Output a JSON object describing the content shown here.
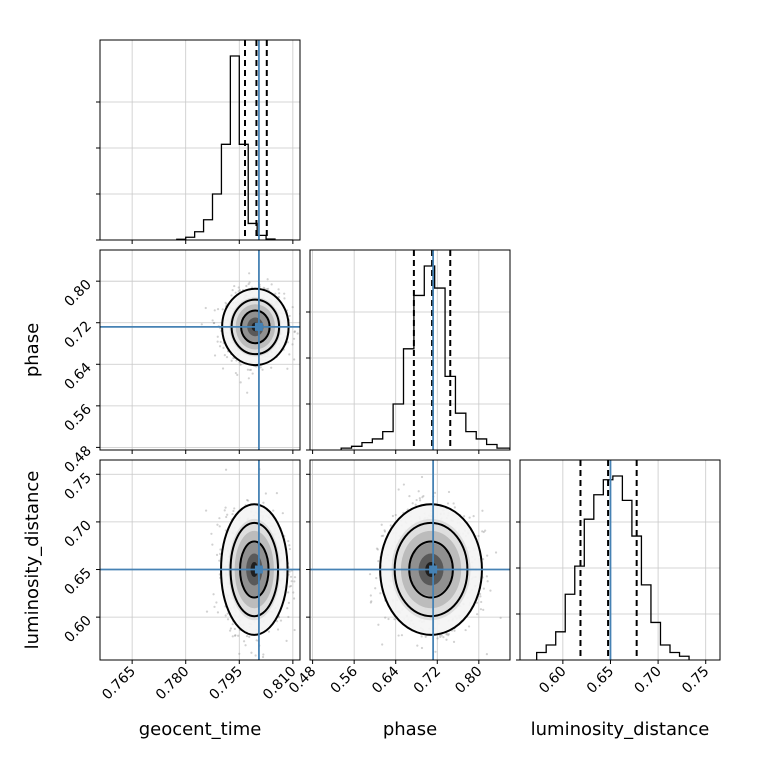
{
  "chart_data": {
    "type": "corner",
    "parameters": [
      {
        "name": "geocent_time",
        "label": "geocent_time",
        "range": [
          0.756,
          0.812
        ],
        "ticks": [
          0.765,
          0.78,
          0.795,
          0.81
        ],
        "tick_labels": [
          "0.765",
          "0.780",
          "0.795",
          "0.810"
        ],
        "truth": 0.8005,
        "quantiles": [
          0.7966,
          0.7998,
          0.8027
        ],
        "histogram": {
          "edges": [
            0.7775,
            0.78,
            0.7825,
            0.785,
            0.7875,
            0.79,
            0.7925,
            0.795,
            0.7975,
            0.8,
            0.8025,
            0.805,
            0.8075,
            0.81
          ],
          "counts": [
            0.004,
            0.015,
            0.045,
            0.11,
            0.25,
            0.52,
            1.0,
            0.52,
            0.09,
            0.025,
            0.005,
            0.0,
            0.0
          ]
        }
      },
      {
        "name": "phase",
        "label": "phase",
        "range": [
          0.475,
          0.86
        ],
        "ticks": [
          0.48,
          0.56,
          0.64,
          0.72,
          0.8
        ],
        "tick_labels": [
          "0.48",
          "0.56",
          "0.64",
          "0.72",
          "0.80"
        ],
        "truth": 0.712,
        "quantiles": [
          0.675,
          0.71,
          0.745
        ],
        "histogram": {
          "edges": [
            0.535,
            0.555,
            0.575,
            0.595,
            0.615,
            0.635,
            0.655,
            0.675,
            0.695,
            0.715,
            0.735,
            0.755,
            0.775,
            0.795,
            0.815,
            0.835,
            0.86
          ],
          "counts": [
            0.01,
            0.02,
            0.04,
            0.06,
            0.1,
            0.25,
            0.55,
            0.84,
            1.0,
            0.88,
            0.4,
            0.2,
            0.1,
            0.06,
            0.03,
            0.01
          ]
        }
      },
      {
        "name": "luminosity_distance",
        "label": "luminosity_distance",
        "range": [
          0.555,
          0.765
        ],
        "ticks": [
          0.6,
          0.65,
          0.7,
          0.75
        ],
        "tick_labels": [
          "0.60",
          "0.65",
          "0.70",
          "0.75"
        ],
        "truth": 0.65,
        "quantiles": [
          0.6185,
          0.6475,
          0.6775
        ],
        "histogram": {
          "edges": [
            0.5725,
            0.5825,
            0.5925,
            0.6025,
            0.6125,
            0.6225,
            0.6325,
            0.6425,
            0.6525,
            0.6625,
            0.6725,
            0.6825,
            0.6925,
            0.7025,
            0.7125,
            0.7225,
            0.7325
          ],
          "counts": [
            0.04,
            0.08,
            0.15,
            0.35,
            0.5,
            0.75,
            0.88,
            0.96,
            0.98,
            0.85,
            0.66,
            0.4,
            0.2,
            0.08,
            0.04,
            0.02
          ]
        }
      }
    ],
    "pairs": [
      {
        "x": "geocent_time",
        "y": "phase",
        "center": [
          0.7995,
          0.712
        ],
        "spread": [
          0.0038,
          0.03
        ]
      },
      {
        "x": "geocent_time",
        "y": "luminosity_distance",
        "center": [
          0.7992,
          0.65
        ],
        "spread": [
          0.0038,
          0.028
        ]
      },
      {
        "x": "phase",
        "y": "luminosity_distance",
        "center": [
          0.708,
          0.65
        ],
        "spread": [
          0.04,
          0.028
        ]
      }
    ]
  }
}
